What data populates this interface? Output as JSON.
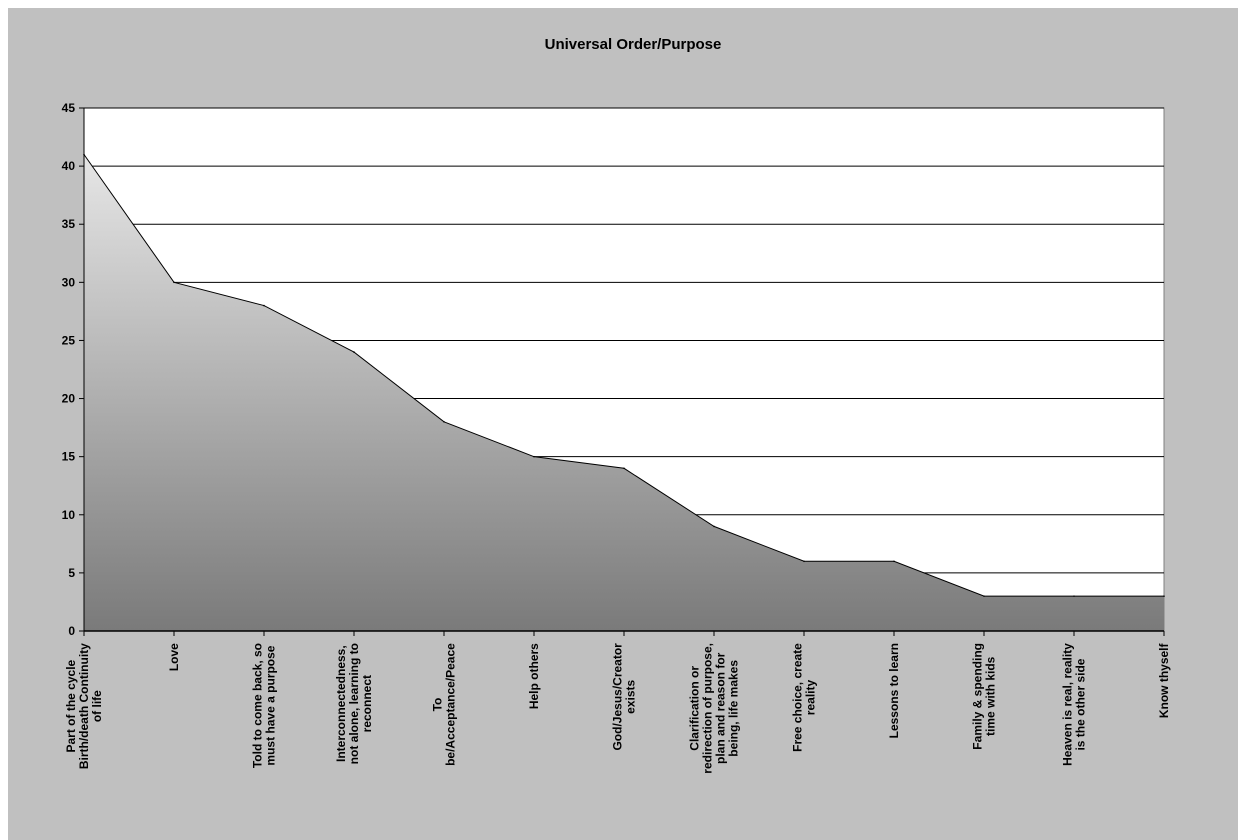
{
  "chart_data": {
    "type": "area",
    "title": "Universal Order/Purpose",
    "xlabel": "",
    "ylabel": "",
    "ylim": [
      0,
      45
    ],
    "yticks": [
      0,
      5,
      10,
      15,
      20,
      25,
      30,
      35,
      40,
      45
    ],
    "grid": true,
    "legend": "none",
    "categories": [
      [
        "Part of the cycle",
        "Birth/death Continuity",
        "of life"
      ],
      [
        "Love"
      ],
      [
        "Told to come back, so",
        "must have a purpose"
      ],
      [
        "Interconnectedness,",
        "not alone, learning to",
        "reconnect"
      ],
      [
        "To",
        "be/Acceptance/Peace"
      ],
      [
        "Help others"
      ],
      [
        "God/Jesus/Creator",
        "exists"
      ],
      [
        "Clarification or",
        "redirection of purpose,",
        "plan and reason for",
        "being, life makes"
      ],
      [
        "Free choice, create",
        "reality"
      ],
      [
        "Lessons to learn"
      ],
      [
        "Family & spending",
        "time with kids"
      ],
      [
        "Heaven is real, reality",
        "is the other side"
      ],
      [
        "Know thyself"
      ]
    ],
    "values": [
      41,
      30,
      28,
      24,
      18,
      15,
      14,
      9,
      6,
      6,
      3,
      3,
      3
    ],
    "colors": {
      "background": "#c0c0c0",
      "plot_area": "#ffffff",
      "fill_top": "#e6e6e6",
      "fill_bottom": "#7a7a7a",
      "gridline": "#000000",
      "outline": "#000000"
    }
  }
}
